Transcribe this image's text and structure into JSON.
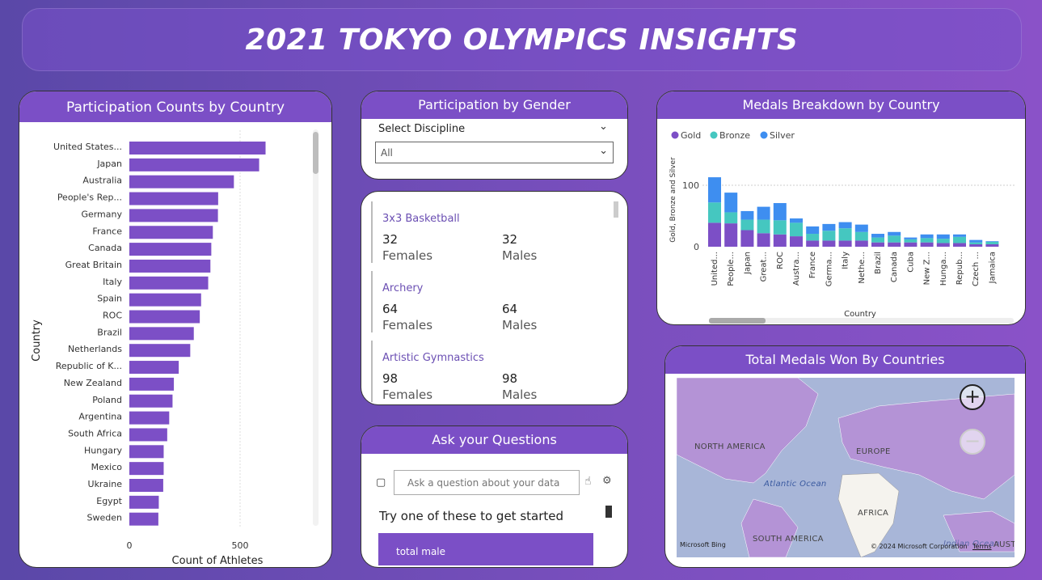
{
  "title": "2021 TOKYO OLYMPICS INSIGHTS",
  "participation_country": {
    "title": "Participation Counts by Country",
    "ylabel": "Country",
    "xlabel": "Count of Athletes",
    "chart_data": {
      "type": "bar",
      "categories": [
        "United States...",
        "Japan",
        "Australia",
        "People's Rep...",
        "Germany",
        "France",
        "Canada",
        "Great Britain",
        "Italy",
        "Spain",
        "ROC",
        "Brazil",
        "Netherlands",
        "Republic of K...",
        "New Zealand",
        "Poland",
        "Argentina",
        "South Africa",
        "Hungary",
        "Mexico",
        "Ukraine",
        "Egypt",
        "Sweden"
      ],
      "values": [
        615,
        586,
        472,
        401,
        400,
        377,
        370,
        366,
        356,
        324,
        318,
        291,
        275,
        223,
        201,
        195,
        180,
        171,
        155,
        155,
        153,
        133,
        131
      ],
      "xticks": [
        "0",
        "500"
      ],
      "xlim": [
        0,
        800
      ]
    }
  },
  "gender": {
    "title": "Participation by Gender",
    "select_label": "Select Discipline",
    "select_value": "All"
  },
  "disciplines": [
    {
      "name": "3x3 Basketball",
      "females": "32",
      "males": "32",
      "female_label": "Females",
      "male_label": "Males"
    },
    {
      "name": "Archery",
      "females": "64",
      "males": "64",
      "female_label": "Females",
      "male_label": "Males"
    },
    {
      "name": "Artistic Gymnastics",
      "females": "98",
      "males": "98",
      "female_label": "Females",
      "male_label": "Males"
    }
  ],
  "qa": {
    "title": "Ask your Questions",
    "placeholder": "Ask a question about your data",
    "try_text": "Try one of these to get started",
    "suggestion": "total male"
  },
  "medals": {
    "title": "Medals Breakdown by Country",
    "legend": [
      {
        "name": "Gold",
        "color": "#7c4fc6"
      },
      {
        "name": "Bronze",
        "color": "#45c7c0"
      },
      {
        "name": "Silver",
        "color": "#3e8ef0"
      }
    ],
    "chart_data": {
      "type": "bar",
      "stacked": true,
      "ylabel": "Gold, Bronze and Silver",
      "xlabel": "Country",
      "yticks": [
        "0",
        "100"
      ],
      "ylim": [
        0,
        130
      ],
      "categories": [
        "United...",
        "People...",
        "Japan",
        "Great...",
        "ROC",
        "Austra...",
        "France",
        "Germa...",
        "Italy",
        "Nethe...",
        "Brazil",
        "Canada",
        "Cuba",
        "New Z...",
        "Hunga...",
        "Repub...",
        "Czech ...",
        "Jamaica"
      ],
      "series": [
        {
          "name": "Gold",
          "values": [
            39,
            38,
            27,
            22,
            20,
            17,
            10,
            10,
            10,
            10,
            7,
            7,
            7,
            7,
            6,
            6,
            4,
            4
          ]
        },
        {
          "name": "Bronze",
          "values": [
            33,
            18,
            17,
            22,
            23,
            22,
            11,
            16,
            20,
            14,
            8,
            11,
            5,
            7,
            7,
            10,
            3,
            4
          ]
        },
        {
          "name": "Silver",
          "values": [
            41,
            32,
            14,
            21,
            28,
            7,
            12,
            11,
            10,
            12,
            6,
            6,
            3,
            6,
            7,
            4,
            4,
            1
          ]
        }
      ]
    }
  },
  "map": {
    "title": "Total Medals Won By Countries",
    "labels": {
      "north_america": "NORTH AMERICA",
      "europe": "EUROPE",
      "atlantic": "Atlantic Ocean",
      "africa": "AFRICA",
      "south_america": "SOUTH AMERICA",
      "india": "Indian Ocean",
      "australia": "AUSTRA"
    },
    "bing": "Microsoft Bing",
    "copyright": "© 2024 Microsoft Corporation",
    "terms": "Terms",
    "land_color": "#b493d6"
  }
}
